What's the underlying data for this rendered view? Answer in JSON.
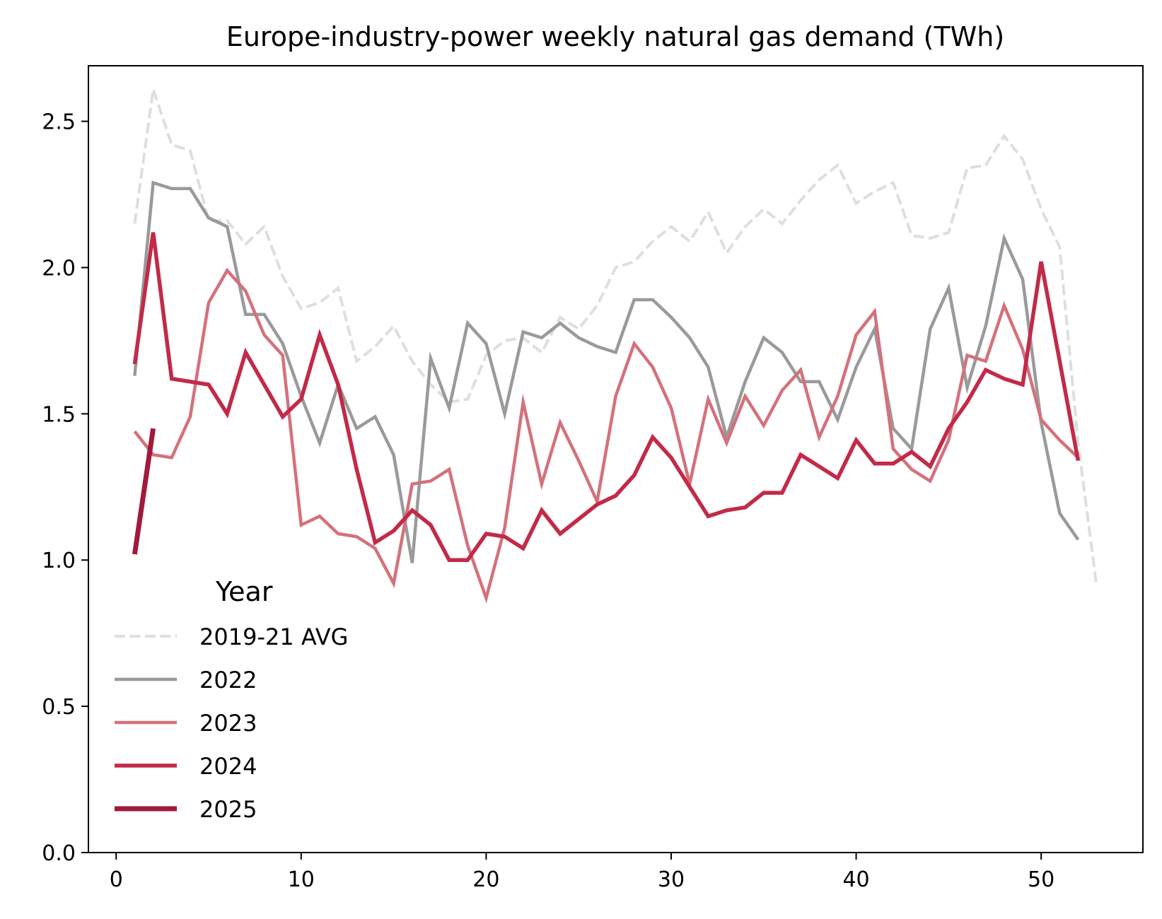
{
  "chart_data": {
    "type": "line",
    "title": "Europe-industry-power weekly natural gas demand (TWh)",
    "xlabel": "",
    "ylabel": "",
    "xlim": [
      -1.5,
      55.5
    ],
    "ylim": [
      0,
      2.69
    ],
    "xticks": [
      0,
      10,
      20,
      30,
      40,
      50
    ],
    "xtick_labels": [
      "0",
      "10",
      "20",
      "30",
      "40",
      "50"
    ],
    "yticks": [
      0,
      0.5,
      1.0,
      1.5,
      2.0,
      2.5
    ],
    "ytick_labels": [
      "0.0",
      "0.5",
      "1.0",
      "1.5",
      "2.0",
      "2.5"
    ],
    "grid": false,
    "legend": {
      "title": "Year",
      "position": "lower-left"
    },
    "series": [
      {
        "name": "2019-21 AVG",
        "color": "#dedede",
        "style": "dashed",
        "x": [
          1,
          2,
          3,
          4,
          5,
          6,
          7,
          8,
          9,
          10,
          11,
          12,
          13,
          14,
          15,
          16,
          17,
          18,
          19,
          20,
          21,
          22,
          23,
          24,
          25,
          26,
          27,
          28,
          29,
          30,
          31,
          32,
          33,
          34,
          35,
          36,
          37,
          38,
          39,
          40,
          41,
          42,
          43,
          44,
          45,
          46,
          47,
          48,
          49,
          50,
          51,
          52,
          53
        ],
        "values": [
          2.15,
          2.61,
          2.42,
          2.4,
          2.16,
          2.16,
          2.08,
          2.14,
          1.97,
          1.86,
          1.88,
          1.93,
          1.68,
          1.73,
          1.8,
          1.68,
          1.6,
          1.54,
          1.55,
          1.7,
          1.75,
          1.76,
          1.71,
          1.83,
          1.79,
          1.87,
          2.0,
          2.02,
          2.09,
          2.14,
          2.09,
          2.19,
          2.05,
          2.14,
          2.2,
          2.15,
          2.23,
          2.3,
          2.35,
          2.22,
          2.26,
          2.29,
          2.11,
          2.1,
          2.12,
          2.34,
          2.35,
          2.45,
          2.37,
          2.2,
          2.07,
          1.4,
          0.91
        ]
      },
      {
        "name": "2022",
        "color": "#9a9a9a",
        "style": "solid",
        "x": [
          1,
          2,
          3,
          4,
          5,
          6,
          7,
          8,
          9,
          10,
          11,
          12,
          13,
          14,
          15,
          16,
          17,
          18,
          19,
          20,
          21,
          22,
          23,
          24,
          25,
          26,
          27,
          28,
          29,
          30,
          31,
          32,
          33,
          34,
          35,
          36,
          37,
          38,
          39,
          40,
          41,
          42,
          43,
          44,
          45,
          46,
          47,
          48,
          49,
          50,
          51,
          52
        ],
        "values": [
          1.63,
          2.29,
          2.27,
          2.27,
          2.17,
          2.14,
          1.84,
          1.84,
          1.74,
          1.56,
          1.4,
          1.6,
          1.45,
          1.49,
          1.36,
          0.99,
          1.69,
          1.52,
          1.81,
          1.74,
          1.5,
          1.78,
          1.76,
          1.81,
          1.76,
          1.73,
          1.71,
          1.89,
          1.89,
          1.83,
          1.76,
          1.66,
          1.42,
          1.61,
          1.76,
          1.71,
          1.61,
          1.61,
          1.48,
          1.66,
          1.79,
          1.45,
          1.38,
          1.79,
          1.93,
          1.59,
          1.8,
          2.1,
          1.96,
          1.47,
          1.16,
          1.07
        ]
      },
      {
        "name": "2023",
        "color": "#d4717c",
        "style": "solid",
        "x": [
          1,
          2,
          3,
          4,
          5,
          6,
          7,
          8,
          9,
          10,
          11,
          12,
          13,
          14,
          15,
          16,
          17,
          18,
          19,
          20,
          21,
          22,
          23,
          24,
          25,
          26,
          27,
          28,
          29,
          30,
          31,
          32,
          33,
          34,
          35,
          36,
          37,
          38,
          39,
          40,
          41,
          42,
          43,
          44,
          45,
          46,
          47,
          48,
          49,
          50,
          51,
          52
        ],
        "values": [
          1.44,
          1.36,
          1.35,
          1.49,
          1.88,
          1.99,
          1.92,
          1.77,
          1.7,
          1.12,
          1.15,
          1.09,
          1.08,
          1.04,
          0.92,
          1.26,
          1.27,
          1.31,
          1.05,
          0.87,
          1.11,
          1.54,
          1.26,
          1.47,
          1.34,
          1.2,
          1.56,
          1.74,
          1.66,
          1.52,
          1.26,
          1.55,
          1.4,
          1.56,
          1.46,
          1.58,
          1.65,
          1.42,
          1.56,
          1.77,
          1.85,
          1.38,
          1.31,
          1.27,
          1.41,
          1.7,
          1.68,
          1.87,
          1.72,
          1.48,
          1.41,
          1.35
        ]
      },
      {
        "name": "2024",
        "color": "#c22a48",
        "style": "solid",
        "x": [
          1,
          2,
          3,
          4,
          5,
          6,
          7,
          8,
          9,
          10,
          11,
          12,
          13,
          14,
          15,
          16,
          17,
          18,
          19,
          20,
          21,
          22,
          23,
          24,
          25,
          26,
          27,
          28,
          29,
          30,
          31,
          32,
          33,
          34,
          35,
          36,
          37,
          38,
          39,
          40,
          41,
          42,
          43,
          44,
          45,
          46,
          47,
          48,
          49,
          50,
          51,
          52
        ],
        "values": [
          1.67,
          2.12,
          1.62,
          1.61,
          1.6,
          1.5,
          1.71,
          1.6,
          1.49,
          1.55,
          1.77,
          1.6,
          1.31,
          1.06,
          1.1,
          1.17,
          1.12,
          1.0,
          1.0,
          1.09,
          1.08,
          1.04,
          1.17,
          1.09,
          1.14,
          1.19,
          1.22,
          1.29,
          1.42,
          1.35,
          1.25,
          1.15,
          1.17,
          1.18,
          1.23,
          1.23,
          1.36,
          1.32,
          1.28,
          1.41,
          1.33,
          1.33,
          1.37,
          1.32,
          1.45,
          1.54,
          1.65,
          1.62,
          1.6,
          2.02,
          1.68,
          1.34
        ]
      },
      {
        "name": "2025",
        "color": "#a01a3c",
        "style": "solid",
        "x": [
          1,
          2
        ],
        "values": [
          1.02,
          1.45
        ]
      }
    ]
  }
}
